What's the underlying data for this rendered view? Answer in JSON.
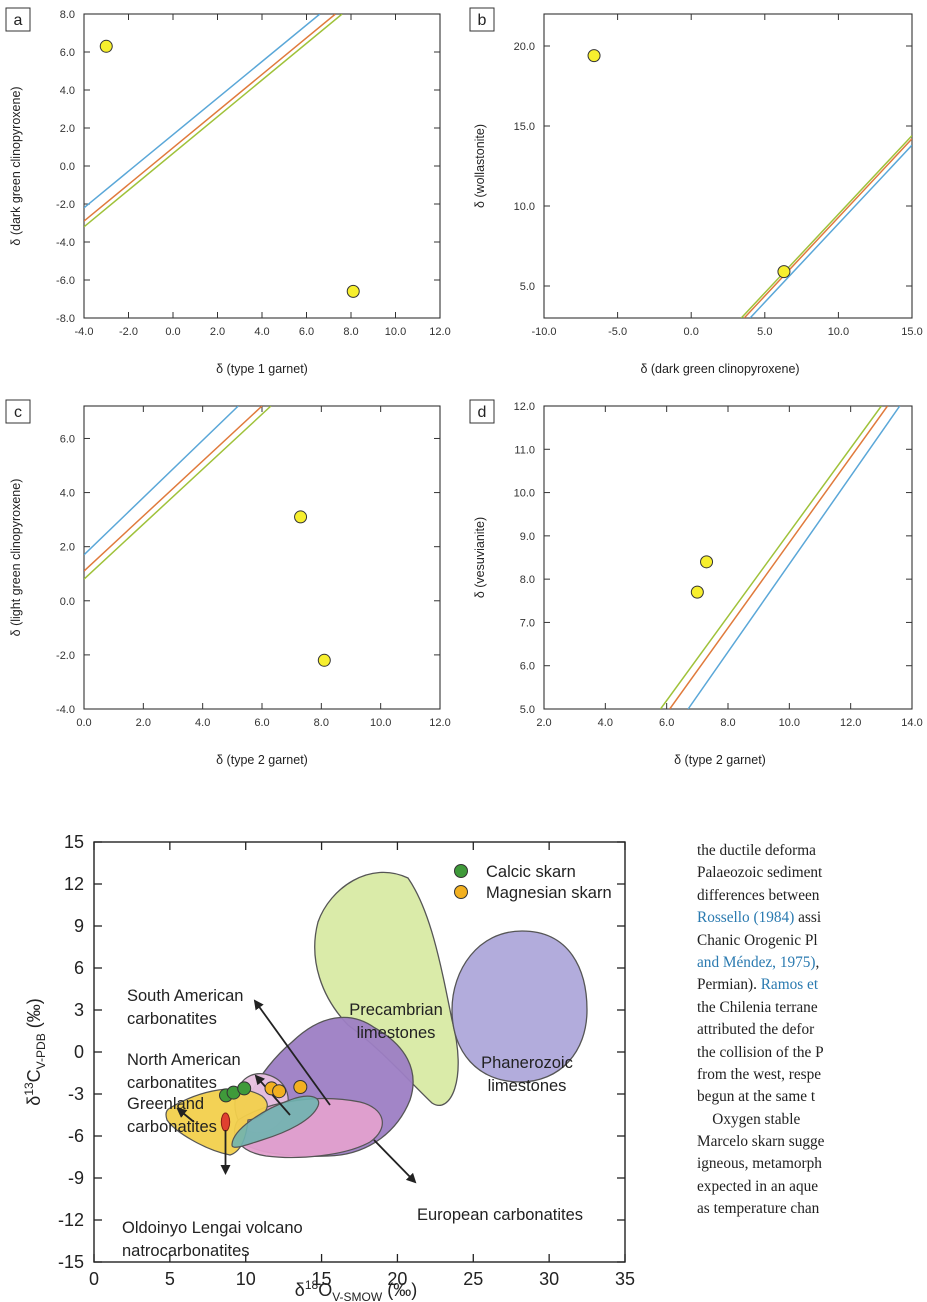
{
  "panels": [
    {
      "label": "a",
      "xlabel": "δ (type 1 garnet)",
      "ylabel": "δ (dark green clinopyroxene)",
      "xlim": [
        -4,
        12
      ],
      "ylim": [
        -8,
        8
      ],
      "xticks": [
        -4,
        -2,
        0,
        2,
        4,
        6,
        8,
        10,
        12
      ],
      "xticklabels": [
        "-4.0",
        "-2.0",
        "0.0",
        "2.0",
        "4.0",
        "6.0",
        "8.0",
        "10.0",
        "12.0"
      ],
      "yticks": [
        -8,
        -6,
        -4,
        -2,
        0,
        2,
        4,
        6,
        8
      ],
      "yticklabels": [
        "-8.0",
        "-6.0",
        "-4.0",
        "-2.0",
        "0.0",
        "2.0",
        "4.0",
        "6.0",
        "8.0"
      ],
      "lines": [
        {
          "color": "#5aa7d8",
          "x": [
            -4,
            6.6
          ],
          "y": [
            -2.2,
            8.0
          ]
        },
        {
          "color": "#e07a3c",
          "x": [
            -4,
            7.3
          ],
          "y": [
            -2.9,
            8.0
          ]
        },
        {
          "color": "#9fc23a",
          "x": [
            -4,
            7.6
          ],
          "y": [
            -3.2,
            8.0
          ]
        }
      ],
      "points": [
        {
          "x": -3.0,
          "y": 6.3
        },
        {
          "x": 8.1,
          "y": -6.6
        }
      ]
    },
    {
      "label": "b",
      "xlabel": "δ (dark green clinopyroxene)",
      "ylabel": "δ (wollastonite)",
      "xlim": [
        -10,
        15
      ],
      "ylim": [
        3,
        22
      ],
      "xticks": [
        -10,
        -5,
        0,
        5,
        10,
        15
      ],
      "xticklabels": [
        "-10.0",
        "-5.0",
        "0.0",
        "5.0",
        "10.0",
        "15.0"
      ],
      "yticks": [
        5,
        10,
        15,
        20
      ],
      "yticklabels": [
        "5.0",
        "10.0",
        "15.0",
        "20.0"
      ],
      "lines": [
        {
          "color": "#5aa7d8",
          "x": [
            4.0,
            15
          ],
          "y": [
            3.0,
            13.8
          ]
        },
        {
          "color": "#e07a3c",
          "x": [
            3.6,
            15
          ],
          "y": [
            3.0,
            14.2
          ]
        },
        {
          "color": "#9fc23a",
          "x": [
            3.4,
            15
          ],
          "y": [
            3.0,
            14.4
          ]
        }
      ],
      "points": [
        {
          "x": -6.6,
          "y": 19.4
        },
        {
          "x": 6.3,
          "y": 5.9
        }
      ]
    },
    {
      "label": "c",
      "xlabel": "δ (type 2 garnet)",
      "ylabel": "δ (light green clinopyroxene)",
      "xlim": [
        0,
        12
      ],
      "ylim": [
        -4,
        7.2
      ],
      "xticks": [
        0,
        2,
        4,
        6,
        8,
        10,
        12
      ],
      "xticklabels": [
        "0.0",
        "2.0",
        "4.0",
        "6.0",
        "8.0",
        "10.0",
        "12.0"
      ],
      "yticks": [
        -4,
        -2,
        0,
        2,
        4,
        6
      ],
      "yticklabels": [
        "-4.0",
        "-2.0",
        "0.0",
        "2.0",
        "4.0",
        "6.0"
      ],
      "lines": [
        {
          "color": "#5aa7d8",
          "x": [
            0,
            5.2
          ],
          "y": [
            1.7,
            7.2
          ]
        },
        {
          "color": "#e07a3c",
          "x": [
            0,
            6.0
          ],
          "y": [
            1.1,
            7.2
          ]
        },
        {
          "color": "#9fc23a",
          "x": [
            0,
            6.3
          ],
          "y": [
            0.8,
            7.2
          ]
        }
      ],
      "points": [
        {
          "x": 7.3,
          "y": 3.1
        },
        {
          "x": 8.1,
          "y": -2.2
        }
      ]
    },
    {
      "label": "d",
      "xlabel": "δ (type 2 garnet)",
      "ylabel": "δ (vesuvianite)",
      "xlim": [
        2,
        14
      ],
      "ylim": [
        5,
        12
      ],
      "xticks": [
        2,
        4,
        6,
        8,
        10,
        12,
        14
      ],
      "xticklabels": [
        "2.0",
        "4.0",
        "6.0",
        "8.0",
        "10.0",
        "12.0",
        "14.0"
      ],
      "yticks": [
        5,
        6,
        7,
        8,
        9,
        10,
        11,
        12
      ],
      "yticklabels": [
        "5.0",
        "6.0",
        "7.0",
        "8.0",
        "9.0",
        "10.0",
        "11.0",
        "12.0"
      ],
      "lines": [
        {
          "color": "#5aa7d8",
          "x": [
            6.7,
            13.6
          ],
          "y": [
            5.0,
            12.0
          ]
        },
        {
          "color": "#e07a3c",
          "x": [
            6.1,
            13.2
          ],
          "y": [
            5.0,
            12.0
          ]
        },
        {
          "color": "#9fc23a",
          "x": [
            5.8,
            13.0
          ],
          "y": [
            5.0,
            12.0
          ]
        }
      ],
      "points": [
        {
          "x": 7.0,
          "y": 7.7
        },
        {
          "x": 7.3,
          "y": 8.4
        }
      ]
    }
  ],
  "chart_data": {
    "type": "scatter",
    "xlabel_base": "δ",
    "xlabel_sup": "18",
    "xlabel_main": "O",
    "xlabel_sub": "V-SMOW",
    "xlabel_unit": " (‰)",
    "ylabel_base": "δ",
    "ylabel_sup": "13",
    "ylabel_main": "C",
    "ylabel_sub": "V-PDB",
    "ylabel_unit": " (‰)",
    "xlim": [
      0,
      35
    ],
    "ylim": [
      -15,
      15
    ],
    "xticks": [
      0,
      5,
      10,
      15,
      20,
      25,
      30,
      35
    ],
    "yticks": [
      -15,
      -12,
      -9,
      -6,
      -3,
      0,
      3,
      6,
      9,
      12,
      15
    ],
    "legend": [
      {
        "name": "Calcic skarn",
        "color": "#3f9a3a"
      },
      {
        "name": "Magnesian skarn",
        "color": "#f2b020"
      }
    ],
    "series": [
      {
        "name": "Calcic skarn",
        "color": "#3f9a3a",
        "points": [
          {
            "x": 8.7,
            "y": -3.1
          },
          {
            "x": 9.2,
            "y": -2.9
          },
          {
            "x": 9.9,
            "y": -2.6
          }
        ]
      },
      {
        "name": "Magnesian skarn",
        "color": "#f2b020",
        "points": [
          {
            "x": 11.7,
            "y": -2.6
          },
          {
            "x": 12.2,
            "y": -2.8
          },
          {
            "x": 13.6,
            "y": -2.5
          }
        ]
      }
    ],
    "regions": [
      {
        "name": "Precambrian limestones",
        "color": "#d4e79a"
      },
      {
        "name": "Phanerozoic limestones",
        "color": "#aaa3d8"
      },
      {
        "name": "European carbonatites",
        "color": "#9d7ec4"
      },
      {
        "name": "Greenland carbonatites",
        "color": "#f2d04c"
      },
      {
        "name": "South American carbonatites",
        "color": "#e3a0cf"
      },
      {
        "name": "North American carbonatites",
        "color": "#e8c0e0"
      },
      {
        "name": "Oldoinyo Lengai volcano natrocarbonatites",
        "color": "#e04030"
      }
    ],
    "labels": {
      "south_american_1": "South American",
      "south_american_2": "carbonatites",
      "north_american_1": "North American",
      "north_american_2": "carbonatites",
      "greenland_1": "Greenland",
      "greenland_2": "carbonatites",
      "precambrian_1": "Precambrian",
      "precambrian_2": "limestones",
      "phanerozoic_1": "Phanerozoic",
      "phanerozoic_2": "limestones",
      "european": "European carbonatites",
      "oldoinyo_1": "Oldoinyo Lengai volcano",
      "oldoinyo_2": "natrocarbonatites"
    }
  },
  "side_text": {
    "l1": "the ductile deforma",
    "l2": "Palaeozoic sediment",
    "l3": "differences between",
    "l4_link": "Rossello (1984)",
    "l4_rest": " assi",
    "l5": "Chanic Orogenic Pl",
    "l6_link": "and Méndez, 1975)",
    "l6_rest": ",",
    "l7_pre": "Permian). ",
    "l7_link": "Ramos et",
    "l8": "the Chilenia terrane",
    "l9": "attributed the defor",
    "l10": "the collision of the P",
    "l11": "from the west, respe",
    "l12": "begun at the same t",
    "l13": "    Oxygen stable",
    "l14": "Marcelo skarn sugge",
    "l15": "igneous, metamorph",
    "l16": "expected in an aque",
    "l17": "as temperature chan"
  }
}
